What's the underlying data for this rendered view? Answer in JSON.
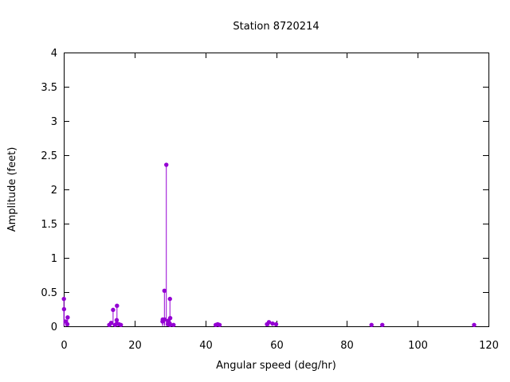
{
  "title": "Station 8720214",
  "colors": {
    "accent": "#9400D3",
    "axis": "#000000",
    "background": "#FFFFFF"
  },
  "chart_data": {
    "type": "scatter",
    "style": "impulses-with-points",
    "title": "Station 8720214",
    "xlabel": "Angular speed (deg/hr)",
    "ylabel": "Amplitude (feet)",
    "xlim": [
      0,
      120
    ],
    "ylim": [
      0,
      4
    ],
    "xtick_values": [
      0,
      20,
      40,
      60,
      80,
      100,
      120
    ],
    "xtick_labels": [
      "0",
      "20",
      "40",
      "60",
      "80",
      "100",
      "120"
    ],
    "ytick_values": [
      0,
      0.5,
      1,
      1.5,
      2,
      2.5,
      3,
      3.5,
      4
    ],
    "ytick_labels": [
      "0",
      "0.5",
      "1",
      "1.5",
      "2",
      "2.5",
      "3",
      "3.5",
      "4"
    ],
    "grid": false,
    "legend": "none",
    "marker": "filled-circle",
    "marker_color": "#9400D3",
    "points": [
      {
        "x": 0.04,
        "y": 0.4
      },
      {
        "x": 0.08,
        "y": 0.25
      },
      {
        "x": 0.54,
        "y": 0.07
      },
      {
        "x": 1.02,
        "y": 0.03
      },
      {
        "x": 1.1,
        "y": 0.13
      },
      {
        "x": 12.85,
        "y": 0.02
      },
      {
        "x": 13.4,
        "y": 0.05
      },
      {
        "x": 13.94,
        "y": 0.24
      },
      {
        "x": 14.5,
        "y": 0.02
      },
      {
        "x": 14.96,
        "y": 0.09
      },
      {
        "x": 15.0,
        "y": 0.04
      },
      {
        "x": 15.04,
        "y": 0.3
      },
      {
        "x": 15.59,
        "y": 0.03
      },
      {
        "x": 16.14,
        "y": 0.02
      },
      {
        "x": 27.9,
        "y": 0.07
      },
      {
        "x": 27.97,
        "y": 0.1
      },
      {
        "x": 28.44,
        "y": 0.52
      },
      {
        "x": 28.51,
        "y": 0.1
      },
      {
        "x": 28.98,
        "y": 2.36
      },
      {
        "x": 29.46,
        "y": 0.03
      },
      {
        "x": 29.53,
        "y": 0.08
      },
      {
        "x": 29.96,
        "y": 0.04
      },
      {
        "x": 30.0,
        "y": 0.4
      },
      {
        "x": 30.04,
        "y": 0.02
      },
      {
        "x": 30.08,
        "y": 0.12
      },
      {
        "x": 31.02,
        "y": 0.02
      },
      {
        "x": 42.93,
        "y": 0.02
      },
      {
        "x": 43.48,
        "y": 0.03
      },
      {
        "x": 44.03,
        "y": 0.02
      },
      {
        "x": 57.42,
        "y": 0.03
      },
      {
        "x": 57.97,
        "y": 0.06
      },
      {
        "x": 58.98,
        "y": 0.04
      },
      {
        "x": 60.0,
        "y": 0.03
      },
      {
        "x": 86.95,
        "y": 0.02
      },
      {
        "x": 90.0,
        "y": 0.02
      },
      {
        "x": 115.94,
        "y": 0.02
      }
    ]
  }
}
